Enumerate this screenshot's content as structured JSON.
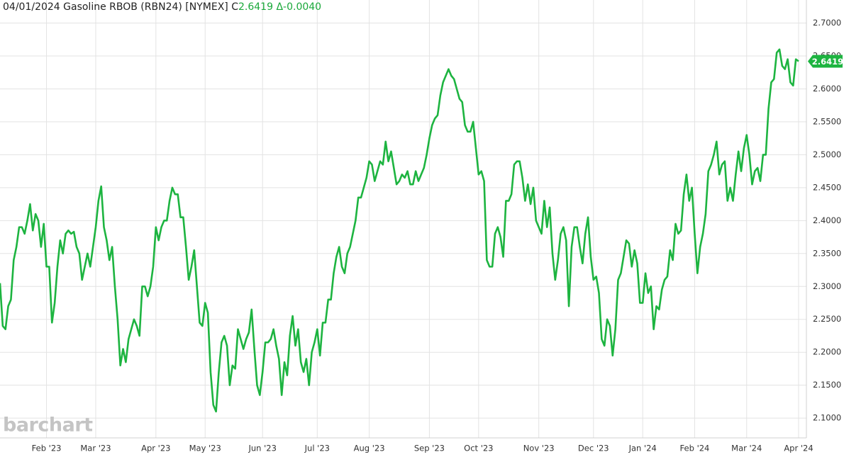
{
  "chart_data": {
    "type": "line",
    "title": "04/01/2024 Gasoline RBOB (RBN24) [NYMEX]",
    "close_label": "C",
    "close": 2.6419,
    "change": "Δ-0.0040",
    "watermark": "barchart",
    "color": "#1db440",
    "grid": true,
    "ylim": [
      2.07,
      2.735
    ],
    "yticks": [
      {
        "value": 2.1,
        "label": "2.1000"
      },
      {
        "value": 2.15,
        "label": "2.1500"
      },
      {
        "value": 2.2,
        "label": "2.2000"
      },
      {
        "value": 2.25,
        "label": "2.2500"
      },
      {
        "value": 2.3,
        "label": "2.3000"
      },
      {
        "value": 2.35,
        "label": "2.3500"
      },
      {
        "value": 2.4,
        "label": "2.4000"
      },
      {
        "value": 2.45,
        "label": "2.4500"
      },
      {
        "value": 2.5,
        "label": "2.5000"
      },
      {
        "value": 2.55,
        "label": "2.5500"
      },
      {
        "value": 2.6,
        "label": "2.6000"
      },
      {
        "value": 2.65,
        "label": "2.6500"
      },
      {
        "value": 2.7,
        "label": "2.7000"
      }
    ],
    "categories": [
      null,
      null,
      null,
      null,
      null,
      null,
      null,
      null,
      null,
      null,
      null,
      null,
      null,
      null,
      null,
      null,
      null,
      "Feb '23",
      null,
      null,
      null,
      null,
      null,
      null,
      null,
      null,
      null,
      null,
      null,
      null,
      null,
      null,
      null,
      null,
      null,
      "Mar '23",
      null,
      null,
      null,
      null,
      null,
      null,
      null,
      null,
      null,
      null,
      null,
      null,
      null,
      null,
      null,
      null,
      null,
      null,
      null,
      null,
      null,
      "Apr '23",
      null,
      null,
      null,
      null,
      null,
      null,
      null,
      null,
      null,
      null,
      null,
      null,
      null,
      null,
      null,
      null,
      null,
      "May '23",
      null,
      null,
      null,
      null,
      null,
      null,
      null,
      null,
      null,
      null,
      null,
      null,
      null,
      null,
      null,
      null,
      null,
      null,
      null,
      null,
      "Jun '23",
      null,
      null,
      null,
      null,
      null,
      null,
      null,
      null,
      null,
      null,
      null,
      null,
      null,
      null,
      null,
      null,
      null,
      null,
      null,
      "Jul '23",
      null,
      null,
      null,
      null,
      null,
      null,
      null,
      null,
      null,
      null,
      null,
      null,
      null,
      null,
      null,
      null,
      null,
      null,
      "Aug '23",
      null,
      null,
      null,
      null,
      null,
      null,
      null,
      null,
      null,
      null,
      null,
      null,
      null,
      null,
      null,
      null,
      null,
      null,
      null,
      null,
      null,
      "Sep '23",
      null,
      null,
      null,
      null,
      null,
      null,
      null,
      null,
      null,
      null,
      null,
      null,
      null,
      null,
      null,
      null,
      null,
      "Oct '23",
      null,
      null,
      null,
      null,
      null,
      null,
      null,
      null,
      null,
      null,
      null,
      null,
      null,
      null,
      null,
      null,
      null,
      null,
      null,
      null,
      null,
      "Nov '23",
      null,
      null,
      null,
      null,
      null,
      null,
      null,
      null,
      null,
      null,
      null,
      null,
      null,
      null,
      null,
      null,
      null,
      null,
      null,
      "Dec '23",
      null,
      null,
      null,
      null,
      null,
      null,
      null,
      null,
      null,
      null,
      null,
      null,
      null,
      null,
      null,
      null,
      null,
      "Jan '24",
      null,
      null,
      null,
      null,
      null,
      null,
      null,
      null,
      null,
      null,
      null,
      null,
      null,
      null,
      null,
      null,
      null,
      null,
      "Feb '24",
      null,
      null,
      null,
      null,
      null,
      null,
      null,
      null,
      null,
      null,
      null,
      null,
      null,
      null,
      null,
      null,
      null,
      null,
      "Mar '24",
      null,
      null,
      null,
      null,
      null,
      null,
      null,
      null,
      null,
      null,
      null,
      null,
      null,
      null,
      null,
      null,
      null,
      null,
      "Apr '24"
    ],
    "values": [
      2.305,
      2.24,
      2.235,
      2.27,
      2.28,
      2.34,
      2.36,
      2.39,
      2.39,
      2.38,
      2.4,
      2.425,
      2.385,
      2.41,
      2.4,
      2.36,
      2.395,
      2.33,
      2.33,
      2.245,
      2.275,
      2.33,
      2.37,
      2.35,
      2.38,
      2.385,
      2.38,
      2.383,
      2.36,
      2.35,
      2.31,
      2.33,
      2.35,
      2.33,
      2.36,
      2.39,
      2.43,
      2.452,
      2.39,
      2.37,
      2.34,
      2.36,
      2.3,
      2.25,
      2.18,
      2.205,
      2.185,
      2.22,
      2.235,
      2.25,
      2.24,
      2.225,
      2.3,
      2.3,
      2.285,
      2.3,
      2.33,
      2.39,
      2.37,
      2.39,
      2.4,
      2.4,
      2.43,
      2.45,
      2.44,
      2.44,
      2.405,
      2.405,
      2.36,
      2.31,
      2.33,
      2.355,
      2.3,
      2.245,
      2.24,
      2.275,
      2.26,
      2.17,
      2.12,
      2.11,
      2.17,
      2.215,
      2.225,
      2.21,
      2.15,
      2.18,
      2.175,
      2.235,
      2.22,
      2.205,
      2.22,
      2.23,
      2.265,
      2.205,
      2.15,
      2.135,
      2.17,
      2.215,
      2.215,
      2.22,
      2.235,
      2.21,
      2.19,
      2.135,
      2.185,
      2.165,
      2.225,
      2.255,
      2.21,
      2.235,
      2.185,
      2.17,
      2.19,
      2.15,
      2.2,
      2.215,
      2.235,
      2.195,
      2.245,
      2.245,
      2.28,
      2.28,
      2.32,
      2.345,
      2.36,
      2.33,
      2.32,
      2.35,
      2.36,
      2.38,
      2.4,
      2.435,
      2.435,
      2.45,
      2.465,
      2.49,
      2.485,
      2.46,
      2.475,
      2.49,
      2.485,
      2.52,
      2.49,
      2.505,
      2.48,
      2.455,
      2.46,
      2.47,
      2.465,
      2.475,
      2.455,
      2.455,
      2.475,
      2.46,
      2.47,
      2.48,
      2.5,
      2.525,
      2.545,
      2.555,
      2.56,
      2.59,
      2.61,
      2.62,
      2.63,
      2.62,
      2.615,
      2.6,
      2.585,
      2.58,
      2.545,
      2.535,
      2.535,
      2.55,
      2.51,
      2.47,
      2.475,
      2.46,
      2.34,
      2.33,
      2.33,
      2.38,
      2.39,
      2.375,
      2.345,
      2.43,
      2.43,
      2.44,
      2.485,
      2.49,
      2.49,
      2.465,
      2.43,
      2.455,
      2.425,
      2.45,
      2.4,
      2.39,
      2.38,
      2.43,
      2.39,
      2.42,
      2.35,
      2.31,
      2.34,
      2.38,
      2.39,
      2.37,
      2.27,
      2.36,
      2.39,
      2.39,
      2.36,
      2.335,
      2.38,
      2.405,
      2.345,
      2.31,
      2.315,
      2.29,
      2.22,
      2.21,
      2.25,
      2.24,
      2.195,
      2.235,
      2.31,
      2.32,
      2.345,
      2.37,
      2.365,
      2.33,
      2.355,
      2.335,
      2.275,
      2.275,
      2.32,
      2.29,
      2.3,
      2.235,
      2.27,
      2.265,
      2.295,
      2.31,
      2.315,
      2.355,
      2.34,
      2.395,
      2.38,
      2.385,
      2.44,
      2.47,
      2.43,
      2.45,
      2.38,
      2.32,
      2.36,
      2.38,
      2.41,
      2.475,
      2.485,
      2.5,
      2.52,
      2.47,
      2.485,
      2.49,
      2.43,
      2.45,
      2.43,
      2.47,
      2.505,
      2.475,
      2.51,
      2.53,
      2.5,
      2.455,
      2.475,
      2.48,
      2.46,
      2.5,
      2.5,
      2.57,
      2.61,
      2.615,
      2.655,
      2.66,
      2.635,
      2.63,
      2.645,
      2.61,
      2.605,
      2.645,
      2.6419
    ]
  }
}
